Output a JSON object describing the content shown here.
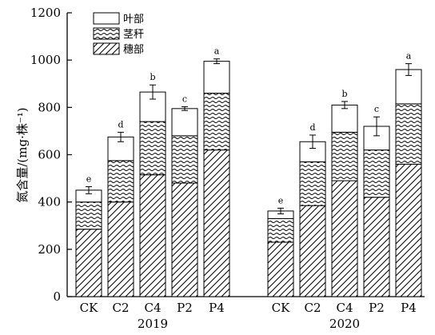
{
  "chart_data": {
    "type": "bar",
    "stacked": true,
    "ylabel": "氮含量/(mg·株⁻¹)",
    "ylim": [
      0,
      1200
    ],
    "yticks": [
      0,
      200,
      400,
      600,
      800,
      1000,
      1200
    ],
    "grid": false,
    "legend_position": "top-left",
    "groups": [
      {
        "year": "2019",
        "categories": [
          "CK",
          "C2",
          "C4",
          "P2",
          "P4"
        ],
        "ear": [
          285,
          400,
          515,
          480,
          620
        ],
        "stem": [
          115,
          175,
          225,
          200,
          240
        ],
        "leaf": [
          50,
          100,
          125,
          115,
          135
        ],
        "error": [
          15,
          20,
          30,
          8,
          10
        ],
        "significance": [
          "e",
          "d",
          "b",
          "c",
          "a"
        ]
      },
      {
        "year": "2020",
        "categories": [
          "CK",
          "C2",
          "C4",
          "P2",
          "P4"
        ],
        "ear": [
          230,
          385,
          490,
          420,
          560
        ],
        "stem": [
          100,
          185,
          205,
          200,
          255
        ],
        "leaf": [
          32,
          85,
          115,
          100,
          145
        ],
        "error": [
          12,
          28,
          15,
          40,
          25
        ],
        "significance": [
          "e",
          "d",
          "b",
          "c",
          "a"
        ]
      }
    ],
    "series": [
      {
        "key": "leaf",
        "name": "叶部",
        "pattern": "blank"
      },
      {
        "key": "stem",
        "name": "茎秆",
        "pattern": "wave"
      },
      {
        "key": "ear",
        "name": "穗部",
        "pattern": "diagonal"
      }
    ]
  }
}
